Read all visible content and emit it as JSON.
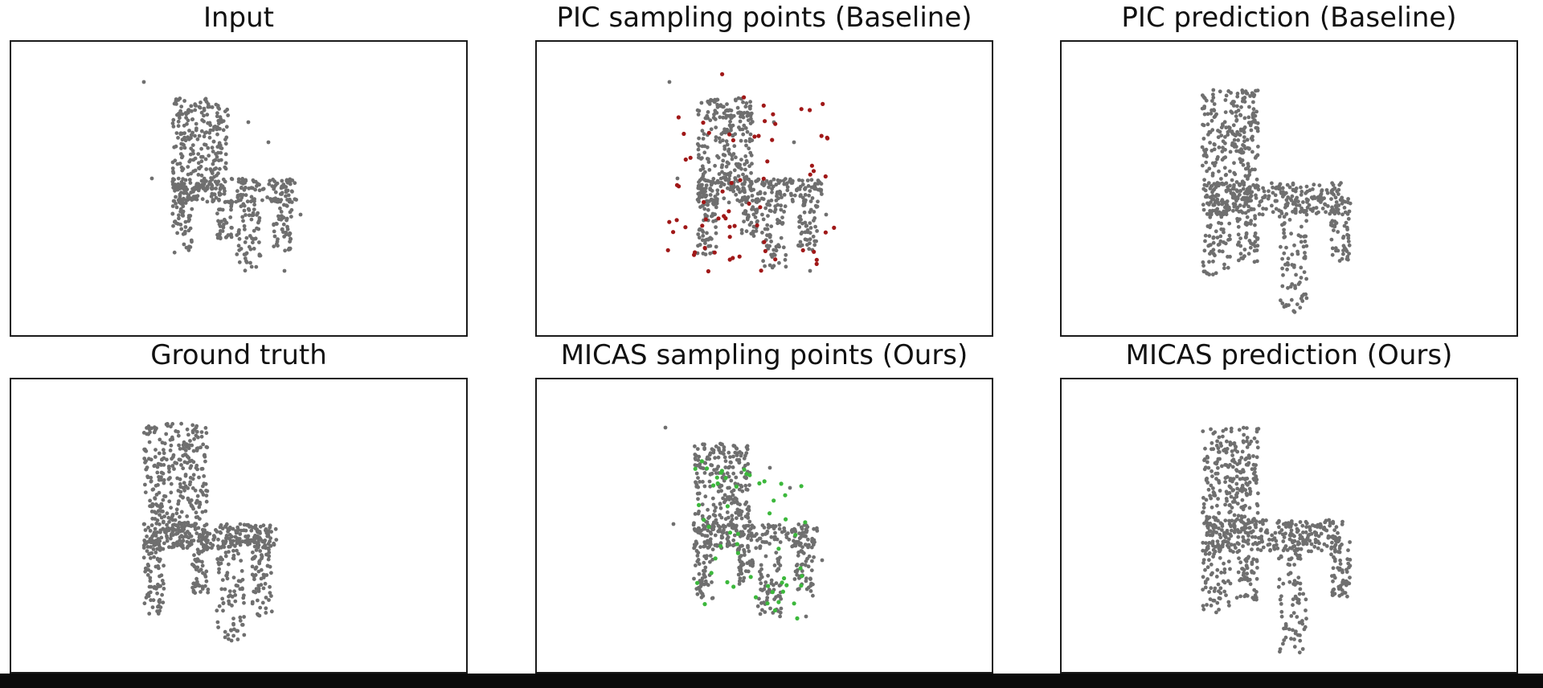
{
  "panels": [
    {
      "title": "Input",
      "sampling": "none"
    },
    {
      "title": "PIC sampling points (Baseline)",
      "sampling": "red"
    },
    {
      "title": "PIC prediction (Baseline)",
      "sampling": "none"
    },
    {
      "title": "Ground truth",
      "sampling": "none"
    },
    {
      "title": "MICAS sampling points (Ours)",
      "sampling": "green"
    },
    {
      "title": "MICAS prediction (Ours)",
      "sampling": "none"
    }
  ],
  "colors": {
    "points": "#6f6f6f",
    "baseline_sampling": "#a01818",
    "ours_sampling": "#3cb83c",
    "frame": "#1a1a1a"
  }
}
